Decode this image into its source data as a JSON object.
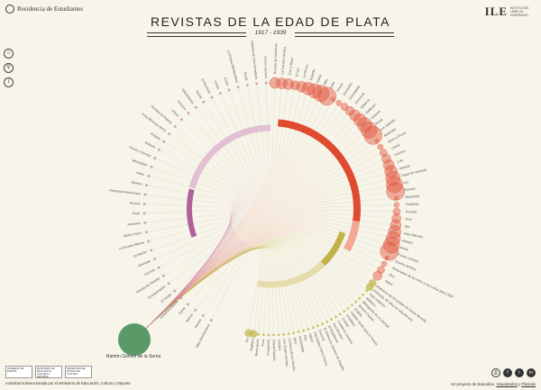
{
  "header": {
    "left_logo_text": "Residencia de Estudiantes",
    "right_logo_text": "ILE",
    "right_logo_sub": "INSTITUCIÓN LIBRE DE ENSEÑANZA",
    "title": "REVISTAS DE LA EDAD DE PLATA",
    "years": "1917 - 1939"
  },
  "side_icons": [
    {
      "name": "home-icon",
      "glyph": "⌂"
    },
    {
      "name": "search-icon",
      "glyph": "⚲"
    },
    {
      "name": "info-icon",
      "glyph": "i"
    }
  ],
  "person": {
    "name": "Ramón Gómez de la Serna",
    "color": "#5a9a68"
  },
  "groups": [
    {
      "id": "pink",
      "color": "#c980a8",
      "arc_label": "Grupo 4"
    },
    {
      "id": "red",
      "color": "#e0533a"
    },
    {
      "id": "olive",
      "color": "#c0b44b"
    }
  ],
  "magazines_right": [
    "Revista de Occidente",
    "La Gaceta Literaria",
    "Cruz y Raya",
    "El Sol",
    "La Pluma",
    "España",
    "Índice",
    "Alfar",
    "Ultra",
    "Grecia",
    "Cervantes",
    "Cosmópolis",
    "Horizonte",
    "Tableros",
    "Reflector",
    "Vértices",
    "Plural",
    "Los Quijotes",
    "Mediodía",
    "Verso y Prosa",
    "Litoral",
    "Carmen",
    "Lola",
    "Meseta",
    "Papel de Aleluyas",
    "Ley",
    "Ddooss",
    "Manantial",
    "Parábola",
    "Noreste",
    "Azor",
    "Isla",
    "Hoja Literaria",
    "Atalaya",
    "Murta",
    "Frente Literario",
    "Gaceta del Arte",
    "Almanaque de las Artes y las Letras para 1928",
    "Abril",
    "Agora"
  ],
  "magazines_lower": [
    "Amanecer de los poetas de Xavier Boveda",
    "Antología. 50 años de vida literaria",
    "Aquí estamos",
    "Atlántico",
    "Bibliografía de la Libertad",
    "Boletín Ciudad",
    "Brújula",
    "Caballo Verde para la Poesía",
    "Chiribitas",
    "Ciudad",
    "Cuaderno Literario",
    "Dos Mundos",
    "El Estudiante",
    "El Robinsón Literario de España",
    "Escorial",
    "Favorables París Poema",
    "Hélice",
    "Hoy",
    "Humanidad",
    "Jaco",
    "La Rosa de los Vientos",
    "Los Cuatro Vientos",
    "Octubre",
    "Nueva España",
    "Postguerra",
    "Proa",
    "Renovación",
    "Sagitario",
    "Sur"
  ],
  "magazines_left": [
    "Alfar (Montevideo)",
    "Atenea",
    "Bolívar",
    "Cartel",
    "Contemporáneos",
    "El Hogar",
    "El Espectador",
    "Gaceta de Tenerife",
    "Hermes",
    "Kalendas",
    "La Nación",
    "La Revista Blanca",
    "Martín Fierro",
    "Nosotros",
    "Proel",
    "Prisma",
    "Repertorio Americano",
    "Sintesis",
    "Verbo",
    "Variedades",
    "Caras y Caretas",
    "Síntesis",
    "Amauta",
    "Proa (Buenos Aires)",
    "Revista de Avance",
    "Ulises",
    "Número",
    "Valoraciones",
    "Social",
    "El Nacional",
    "Letras",
    "Crisol",
    "La Pluma (Montevideo)",
    "Ínsula",
    "Papeles de Son Armadans",
    "Correo Literario"
  ],
  "colors": {
    "background": "#f7f5e9",
    "pink_arc": "#e0c0d2",
    "pink_arc_dark": "#b0609a",
    "red_arc": "#e04a2e",
    "red_arc_light": "#f2a894",
    "olive_arc": "#c2b248",
    "olive_arc_light": "#e4dcaa"
  },
  "footer": {
    "org_logos": [
      "GOBIERNO DE ESPAÑA",
      "MINISTERIO DE EDUCACIÓN, CULTURA Y DEPORTE",
      "SECRETARÍA DE ESTADO DE CULTURA"
    ],
    "funding_text": "Actividad subvencionada por el Ministerio de Educación, Cultura y Deporte",
    "credits_prefix": "Un proyecto de ",
    "credits_a": "Educaline",
    "credits_sep": ", ",
    "credits_b": "Visualizados",
    "credits_and": " y ",
    "credits_c": "Pliosoke"
  },
  "share": [
    {
      "name": "print-icon",
      "glyph": "⎙"
    },
    {
      "name": "facebook-icon",
      "glyph": "f"
    },
    {
      "name": "twitter-icon",
      "glyph": "t"
    },
    {
      "name": "linkedin-icon",
      "glyph": "in"
    }
  ]
}
